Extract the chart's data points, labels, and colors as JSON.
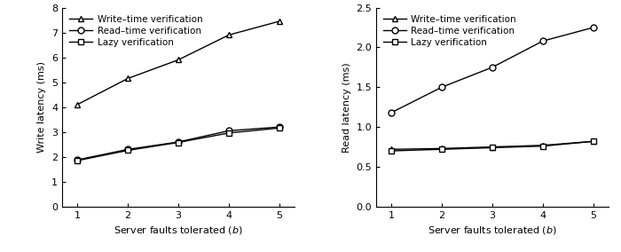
{
  "x": [
    1,
    2,
    3,
    4,
    5
  ],
  "left": {
    "write_time": [
      4.1,
      5.15,
      5.9,
      6.9,
      7.45
    ],
    "read_time": [
      1.88,
      2.3,
      2.6,
      3.05,
      3.2
    ],
    "lazy": [
      1.85,
      2.26,
      2.58,
      2.96,
      3.16
    ],
    "ylabel": "Write latency (ms)",
    "ylim": [
      0,
      8
    ],
    "yticks": [
      0,
      1,
      2,
      3,
      4,
      5,
      6,
      7,
      8
    ]
  },
  "right": {
    "write_time": [
      0.72,
      0.73,
      0.75,
      0.77,
      0.82
    ],
    "read_time": [
      1.18,
      1.5,
      1.75,
      2.08,
      2.25
    ],
    "lazy": [
      0.7,
      0.72,
      0.74,
      0.76,
      0.82
    ],
    "ylabel": "Read latency (ms)",
    "ylim": [
      0,
      2.5
    ],
    "yticks": [
      0,
      0.5,
      1.0,
      1.5,
      2.0,
      2.5
    ]
  },
  "xlabel": "Server faults tolerated ($b$)",
  "legend_labels": [
    "Write–time verification",
    "Read–time verification",
    "Lazy verification"
  ],
  "line_color": "#000000",
  "marker_triangle": "^",
  "marker_circle": "o",
  "marker_square": "s",
  "markersize": 5,
  "linewidth": 1.0,
  "fontsize_label": 8,
  "fontsize_tick": 8,
  "fontsize_legend": 7.5
}
